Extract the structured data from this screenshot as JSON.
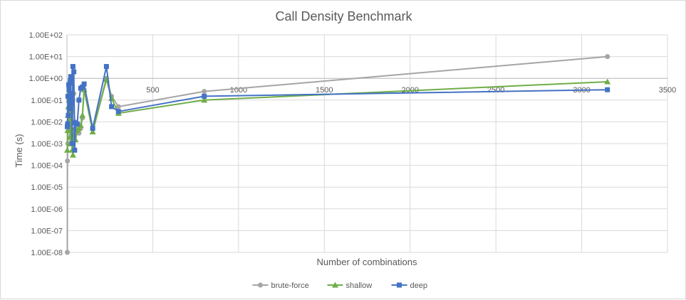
{
  "chart_data": {
    "type": "line",
    "title": "Call Density Benchmark",
    "xlabel": "Number of combinations",
    "ylabel": "Time (s)",
    "xlim": [
      0,
      3500
    ],
    "ylim": [
      1e-08,
      100
    ],
    "y_scale": "log",
    "x_ticks": [
      500,
      1000,
      1500,
      2000,
      2500,
      3000,
      3500
    ],
    "y_ticks": [
      "1.00E+02",
      "1.00E+01",
      "1.00E+00",
      "1.00E-01",
      "1.00E-02",
      "1.00E-03",
      "1.00E-04",
      "1.00E-05",
      "1.00E-06",
      "1.00E-07",
      "1.00E-08"
    ],
    "grid": true,
    "legend": "bottom",
    "series": [
      {
        "name": "brute-force",
        "color": "#a5a5a5",
        "marker": "circle",
        "points": [
          [
            2,
            1e-08
          ],
          [
            3,
            0.00016
          ],
          [
            5,
            0.001
          ],
          [
            8,
            0.01
          ],
          [
            10,
            0.1
          ],
          [
            12,
            0.3
          ],
          [
            14,
            0.5
          ],
          [
            16,
            0.05
          ],
          [
            18,
            0.2
          ],
          [
            20,
            0.6
          ],
          [
            22,
            0.005
          ],
          [
            25,
            0.01
          ],
          [
            28,
            0.03
          ],
          [
            30,
            0.003
          ],
          [
            35,
            0.1
          ],
          [
            40,
            0.2
          ],
          [
            45,
            0.01
          ],
          [
            50,
            0.005
          ],
          [
            60,
            0.006
          ],
          [
            70,
            0.003
          ],
          [
            80,
            0.005
          ],
          [
            90,
            0.015
          ],
          [
            100,
            0.3
          ],
          [
            150,
            0.005
          ],
          [
            230,
            1.0
          ],
          [
            260,
            0.15
          ],
          [
            300,
            0.05
          ],
          [
            800,
            0.25
          ],
          [
            3150,
            10.0
          ]
        ]
      },
      {
        "name": "shallow",
        "color": "#70ad47",
        "marker": "triangle",
        "points": [
          [
            2,
            0.0005
          ],
          [
            4,
            0.004
          ],
          [
            6,
            0.02
          ],
          [
            8,
            0.05
          ],
          [
            10,
            0.2
          ],
          [
            12,
            0.1
          ],
          [
            14,
            0.3
          ],
          [
            16,
            0.01
          ],
          [
            18,
            0.002
          ],
          [
            20,
            0.001
          ],
          [
            22,
            0.05
          ],
          [
            25,
            0.1
          ],
          [
            28,
            0.01
          ],
          [
            30,
            0.0005
          ],
          [
            35,
            0.0003
          ],
          [
            40,
            0.0025
          ],
          [
            45,
            0.005
          ],
          [
            50,
            0.0015
          ],
          [
            60,
            0.004
          ],
          [
            70,
            0.005
          ],
          [
            80,
            0.007
          ],
          [
            90,
            0.02
          ],
          [
            100,
            0.3
          ],
          [
            150,
            0.0035
          ],
          [
            230,
            0.9
          ],
          [
            260,
            0.12
          ],
          [
            300,
            0.025
          ],
          [
            800,
            0.1
          ],
          [
            3150,
            0.7
          ]
        ]
      },
      {
        "name": "deep",
        "color": "#4472c4",
        "marker": "square",
        "points": [
          [
            2,
            0.006
          ],
          [
            4,
            0.008
          ],
          [
            6,
            0.15
          ],
          [
            8,
            0.02
          ],
          [
            10,
            0.5
          ],
          [
            12,
            0.3
          ],
          [
            14,
            0.04
          ],
          [
            16,
            0.1
          ],
          [
            18,
            0.6
          ],
          [
            20,
            0.8
          ],
          [
            22,
            1.2
          ],
          [
            25,
            0.07
          ],
          [
            28,
            0.2
          ],
          [
            30,
            0.001
          ],
          [
            35,
            3.5
          ],
          [
            40,
            2.0
          ],
          [
            45,
            0.0005
          ],
          [
            50,
            0.009
          ],
          [
            60,
            0.008
          ],
          [
            70,
            0.1
          ],
          [
            80,
            0.35
          ],
          [
            90,
            0.4
          ],
          [
            100,
            0.55
          ],
          [
            150,
            0.005
          ],
          [
            230,
            3.5
          ],
          [
            260,
            0.05
          ],
          [
            300,
            0.03
          ],
          [
            800,
            0.15
          ],
          [
            3150,
            0.3
          ]
        ]
      }
    ]
  }
}
